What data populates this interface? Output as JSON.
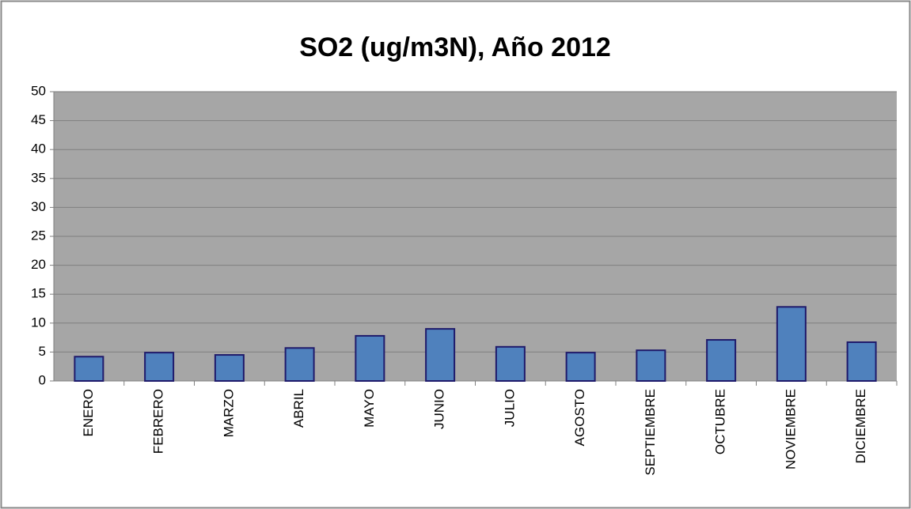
{
  "chart_data": {
    "type": "bar",
    "title": "SO2 (ug/m3N), Año 2012",
    "categories": [
      "ENERO",
      "FEBRERO",
      "MARZO",
      "ABRIL",
      "MAYO",
      "JUNIO",
      "JULIO",
      "AGOSTO",
      "SEPTIEMBRE",
      "OCTUBRE",
      "NOVIEMBRE",
      "DICIEMBRE"
    ],
    "values": [
      4.2,
      4.9,
      4.5,
      5.7,
      7.8,
      9.0,
      5.9,
      4.9,
      5.3,
      7.1,
      12.8,
      6.7
    ],
    "color": "#4f81bd",
    "ylim": [
      0,
      50
    ],
    "yticks": [
      0,
      5,
      10,
      15,
      20,
      25,
      30,
      35,
      40,
      45,
      50
    ],
    "grid": true
  }
}
